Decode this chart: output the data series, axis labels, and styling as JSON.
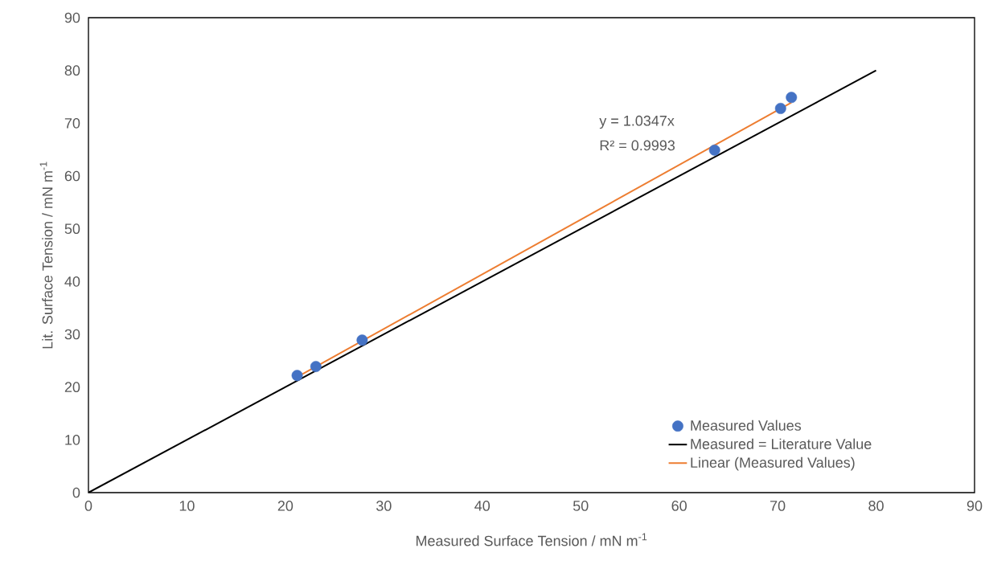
{
  "chart_data": {
    "type": "scatter",
    "xlabel": "Measured Surface Tension / mN m$^{-1}$",
    "ylabel": "Lit. Surface Tension / mN m$^{-1}$",
    "xlim": [
      0,
      90
    ],
    "ylim": [
      0,
      90
    ],
    "xticks": [
      0,
      10,
      20,
      30,
      40,
      50,
      60,
      70,
      80,
      90
    ],
    "yticks": [
      0,
      10,
      20,
      30,
      40,
      50,
      60,
      70,
      80,
      90
    ],
    "grid": false,
    "legend": "bottom right",
    "marker": "circle",
    "series": [
      {
        "name": "Measured Values",
        "color": "#4472c4",
        "x": [
          21.2,
          23.1,
          27.8,
          63.6,
          70.3,
          71.4
        ],
        "values": [
          22.2,
          23.9,
          28.9,
          64.9,
          72.8,
          74.9
        ]
      },
      {
        "name": "Measured = Literature Value",
        "type": "line",
        "marker": "none",
        "color": "#000000",
        "x": [
          0,
          80
        ],
        "values": [
          0,
          80
        ]
      },
      {
        "name": "Linear (Measured Values)",
        "type": "line",
        "marker": "none",
        "color": "#ed7d31",
        "x": [
          21.2,
          71.4
        ],
        "values": [
          21.9,
          73.9
        ]
      }
    ],
    "annotations": [
      "y = 1.0347x",
      "R² = 0.9993"
    ]
  }
}
